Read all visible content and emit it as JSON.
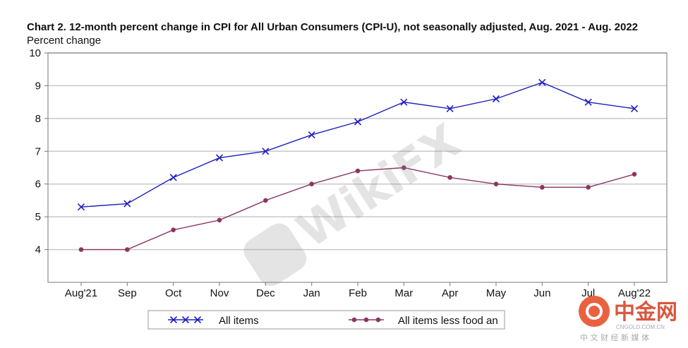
{
  "chart_data": {
    "type": "line",
    "title": "Chart 2. 12-month percent change in CPI for All Urban Consumers (CPI-U), not seasonally adjusted, Aug. 2021 - Aug. 2022",
    "ylabel": "Percent change",
    "xlabel": "",
    "ylim": [
      3,
      10
    ],
    "yticks": [
      4,
      5,
      6,
      7,
      8,
      9,
      10
    ],
    "grid": true,
    "categories": [
      "Aug'21",
      "Sep",
      "Oct",
      "Nov",
      "Dec",
      "Jan",
      "Feb",
      "Mar",
      "Apr",
      "May",
      "Jun",
      "Jul",
      "Aug'22"
    ],
    "series": [
      {
        "name": "All items",
        "color": "#1f1fbf",
        "marker": "x",
        "values": [
          5.3,
          5.4,
          6.2,
          6.8,
          7.0,
          7.5,
          7.9,
          8.5,
          8.3,
          8.6,
          9.1,
          8.5,
          8.3
        ]
      },
      {
        "name": "All items less food an",
        "color": "#8c3560",
        "marker": "circle",
        "values": [
          4.0,
          4.0,
          4.6,
          4.9,
          5.5,
          6.0,
          6.4,
          6.5,
          6.2,
          6.0,
          5.9,
          5.9,
          6.3
        ]
      }
    ],
    "legend": "bottom"
  },
  "watermarks": {
    "wikifx": "WikiFX",
    "cngold_cn": "中金网",
    "cngold_url": "CNGOLD.COM.CN",
    "cngold_sub": "中 文 财 经 新 媒 体"
  }
}
